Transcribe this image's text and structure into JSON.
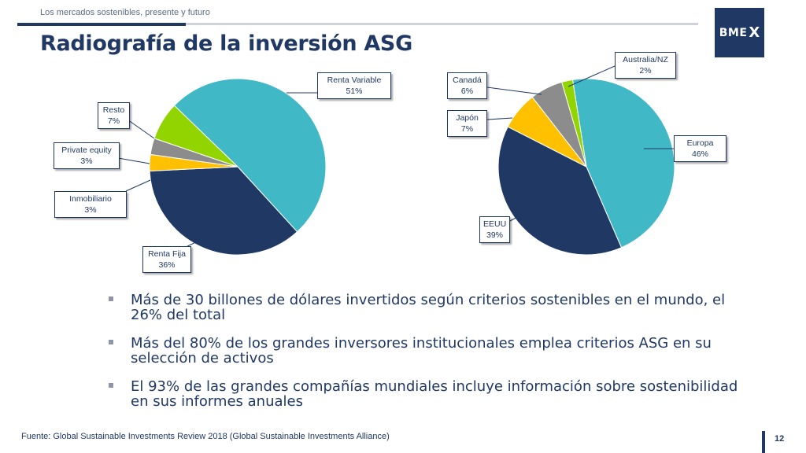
{
  "header": {
    "supertitle": "Los mercados sostenibles, presente y futuro",
    "title": "Radiografía de la inversión ASG",
    "logo_text": "BME",
    "logo_mark": "X"
  },
  "colors": {
    "navy": "#1f3864",
    "teal": "#40b8c6",
    "green": "#92d400",
    "grey": "#8c8c8c",
    "yellow": "#ffc000"
  },
  "chart_data": [
    {
      "type": "pie",
      "title": "",
      "slices": [
        {
          "label": "Renta Variable",
          "value": 51,
          "display": "51%",
          "color": "#40b8c6"
        },
        {
          "label": "Renta Fija",
          "value": 36,
          "display": "36%",
          "color": "#1f3864"
        },
        {
          "label": "Inmobiliario",
          "value": 3,
          "display": "3%",
          "color": "#ffc000"
        },
        {
          "label": "Private equity",
          "value": 3,
          "display": "3%",
          "color": "#8c8c8c"
        },
        {
          "label": "Resto",
          "value": 7,
          "display": "7%",
          "color": "#92d400"
        }
      ]
    },
    {
      "type": "pie",
      "title": "",
      "slices": [
        {
          "label": "Europa",
          "value": 46,
          "display": "46%",
          "color": "#40b8c6"
        },
        {
          "label": "EEUU",
          "value": 39,
          "display": "39%",
          "color": "#1f3864"
        },
        {
          "label": "Japón",
          "value": 7,
          "display": "7%",
          "color": "#ffc000"
        },
        {
          "label": "Canadá",
          "value": 6,
          "display": "6%",
          "color": "#8c8c8c"
        },
        {
          "label": "Australia/NZ",
          "value": 2,
          "display": "2%",
          "color": "#92d400"
        }
      ]
    }
  ],
  "bullets": [
    "Más de 30 billones de dólares invertidos según criterios sostenibles en el mundo, el 26% del total",
    "Más del 80% de los grandes inversores institucionales emplea criterios ASG en su selección de activos",
    "El 93% de las grandes compañías mundiales incluye información sobre sostenibilidad en sus informes anuales"
  ],
  "footer": {
    "source": "Fuente: Global Sustainable Investments Review 2018 (Global Sustainable Investments Alliance)",
    "page_number": "12"
  }
}
